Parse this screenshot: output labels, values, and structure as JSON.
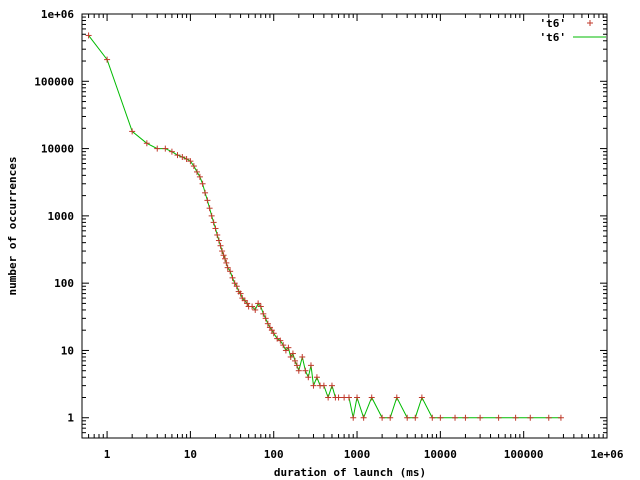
{
  "chart_data": {
    "type": "scatter",
    "xlabel": "duration of launch (ms)",
    "ylabel": "number of occurrences",
    "x_scale": "log",
    "y_scale": "log",
    "xlim": [
      0.5,
      1000000
    ],
    "ylim": [
      0.5,
      1000000
    ],
    "x_ticks": [
      "1",
      "10",
      "100",
      "1000",
      "10000",
      "100000",
      "1e+06"
    ],
    "x_tick_values": [
      1,
      10,
      100,
      1000,
      10000,
      100000,
      1000000
    ],
    "y_ticks": [
      "1",
      "10",
      "100",
      "1000",
      "10000",
      "100000",
      "1e+06"
    ],
    "y_tick_values": [
      1,
      10,
      100,
      1000,
      10000,
      100000,
      1000000
    ],
    "legend_position": "top-right",
    "series": [
      {
        "name": "'t6'",
        "style": "points",
        "color": "#c0392b",
        "marker": "plus",
        "points": [
          [
            0.6,
            480000
          ],
          [
            1,
            210000
          ],
          [
            2,
            18000
          ],
          [
            3,
            12000
          ],
          [
            4,
            10000
          ],
          [
            5,
            10000
          ],
          [
            6,
            9000
          ],
          [
            7,
            8000
          ],
          [
            8,
            7500
          ],
          [
            9,
            7000
          ],
          [
            10,
            6500
          ],
          [
            11,
            5500
          ],
          [
            12,
            4500
          ],
          [
            13,
            3800
          ],
          [
            14,
            3000
          ],
          [
            15,
            2200
          ],
          [
            16,
            1700
          ],
          [
            17,
            1300
          ],
          [
            18,
            1000
          ],
          [
            19,
            800
          ],
          [
            20,
            650
          ],
          [
            21,
            520
          ],
          [
            22,
            430
          ],
          [
            23,
            360
          ],
          [
            24,
            300
          ],
          [
            25,
            260
          ],
          [
            26,
            230
          ],
          [
            27,
            200
          ],
          [
            28,
            170
          ],
          [
            30,
            150
          ],
          [
            32,
            120
          ],
          [
            34,
            100
          ],
          [
            36,
            90
          ],
          [
            38,
            75
          ],
          [
            40,
            70
          ],
          [
            42,
            60
          ],
          [
            45,
            55
          ],
          [
            48,
            50
          ],
          [
            50,
            45
          ],
          [
            55,
            45
          ],
          [
            60,
            40
          ],
          [
            65,
            50
          ],
          [
            70,
            45
          ],
          [
            75,
            35
          ],
          [
            80,
            30
          ],
          [
            85,
            25
          ],
          [
            90,
            22
          ],
          [
            95,
            20
          ],
          [
            100,
            18
          ],
          [
            110,
            15
          ],
          [
            120,
            14
          ],
          [
            130,
            12
          ],
          [
            140,
            10
          ],
          [
            150,
            11
          ],
          [
            160,
            8
          ],
          [
            170,
            9
          ],
          [
            180,
            7
          ],
          [
            190,
            6
          ],
          [
            200,
            5
          ],
          [
            220,
            8
          ],
          [
            240,
            5
          ],
          [
            260,
            4
          ],
          [
            280,
            6
          ],
          [
            300,
            3
          ],
          [
            330,
            4
          ],
          [
            360,
            3
          ],
          [
            400,
            3
          ],
          [
            450,
            2
          ],
          [
            500,
            3
          ],
          [
            550,
            2
          ],
          [
            600,
            2
          ],
          [
            700,
            2
          ],
          [
            800,
            2
          ],
          [
            900,
            1
          ],
          [
            1000,
            2
          ],
          [
            1200,
            1
          ],
          [
            1500,
            2
          ],
          [
            2000,
            1
          ],
          [
            2500,
            1
          ],
          [
            3000,
            2
          ],
          [
            4000,
            1
          ],
          [
            5000,
            1
          ],
          [
            6000,
            2
          ],
          [
            8000,
            1
          ],
          [
            10000,
            1
          ],
          [
            15000,
            1
          ],
          [
            20000,
            1
          ],
          [
            30000,
            1
          ],
          [
            50000,
            1
          ],
          [
            80000,
            1
          ],
          [
            120000,
            1
          ],
          [
            200000,
            1
          ],
          [
            280000,
            1
          ]
        ]
      },
      {
        "name": "'t6'",
        "style": "lines",
        "color": "#00bb00",
        "points": [
          [
            0.6,
            480000
          ],
          [
            1,
            210000
          ],
          [
            2,
            18000
          ],
          [
            3,
            12000
          ],
          [
            4,
            10000
          ],
          [
            5,
            10000
          ],
          [
            6,
            9000
          ],
          [
            7,
            8000
          ],
          [
            8,
            7500
          ],
          [
            9,
            7000
          ],
          [
            10,
            6500
          ],
          [
            11,
            5500
          ],
          [
            12,
            4500
          ],
          [
            13,
            3800
          ],
          [
            14,
            3000
          ],
          [
            15,
            2200
          ],
          [
            16,
            1700
          ],
          [
            17,
            1300
          ],
          [
            18,
            1000
          ],
          [
            19,
            800
          ],
          [
            20,
            650
          ],
          [
            21,
            520
          ],
          [
            22,
            430
          ],
          [
            23,
            360
          ],
          [
            24,
            300
          ],
          [
            25,
            260
          ],
          [
            26,
            230
          ],
          [
            27,
            200
          ],
          [
            28,
            170
          ],
          [
            30,
            150
          ],
          [
            32,
            120
          ],
          [
            34,
            100
          ],
          [
            36,
            90
          ],
          [
            38,
            75
          ],
          [
            40,
            70
          ],
          [
            42,
            60
          ],
          [
            45,
            55
          ],
          [
            48,
            50
          ],
          [
            50,
            45
          ],
          [
            55,
            45
          ],
          [
            60,
            40
          ],
          [
            65,
            50
          ],
          [
            70,
            45
          ],
          [
            75,
            35
          ],
          [
            80,
            30
          ],
          [
            85,
            25
          ],
          [
            90,
            22
          ],
          [
            95,
            20
          ],
          [
            100,
            18
          ],
          [
            110,
            15
          ],
          [
            120,
            14
          ],
          [
            130,
            12
          ],
          [
            140,
            10
          ],
          [
            150,
            11
          ],
          [
            160,
            8
          ],
          [
            170,
            9
          ],
          [
            180,
            7
          ],
          [
            190,
            6
          ],
          [
            200,
            5
          ],
          [
            220,
            8
          ],
          [
            240,
            5
          ],
          [
            260,
            4
          ],
          [
            280,
            6
          ],
          [
            300,
            3
          ],
          [
            330,
            4
          ],
          [
            360,
            3
          ],
          [
            400,
            3
          ],
          [
            450,
            2
          ],
          [
            500,
            3
          ],
          [
            550,
            2
          ],
          [
            600,
            2
          ],
          [
            700,
            2
          ],
          [
            800,
            2
          ],
          [
            900,
            1
          ],
          [
            1000,
            2
          ],
          [
            1200,
            1
          ],
          [
            1500,
            2
          ],
          [
            2000,
            1
          ],
          [
            2500,
            1
          ],
          [
            3000,
            2
          ],
          [
            4000,
            1
          ],
          [
            5000,
            1
          ],
          [
            6000,
            2
          ],
          [
            8000,
            1
          ],
          [
            10000,
            1
          ],
          [
            15000,
            1
          ],
          [
            20000,
            1
          ],
          [
            30000,
            1
          ],
          [
            50000,
            1
          ],
          [
            80000,
            1
          ],
          [
            120000,
            1
          ],
          [
            200000,
            1
          ],
          [
            280000,
            1
          ]
        ]
      }
    ]
  }
}
